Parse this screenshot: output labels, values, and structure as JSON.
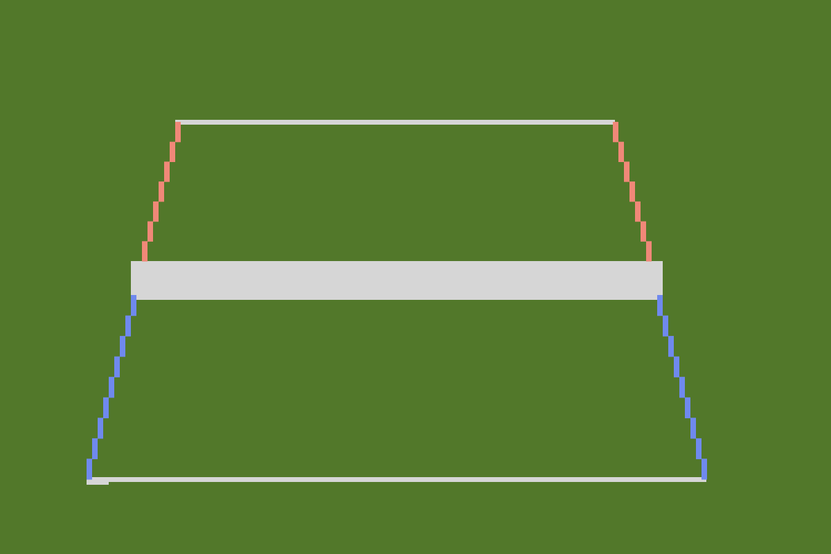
{
  "colors": {
    "field": "#52782a",
    "line": "#d6d6d6",
    "far_side": "#f08878",
    "near_side": "#6f89ee"
  }
}
